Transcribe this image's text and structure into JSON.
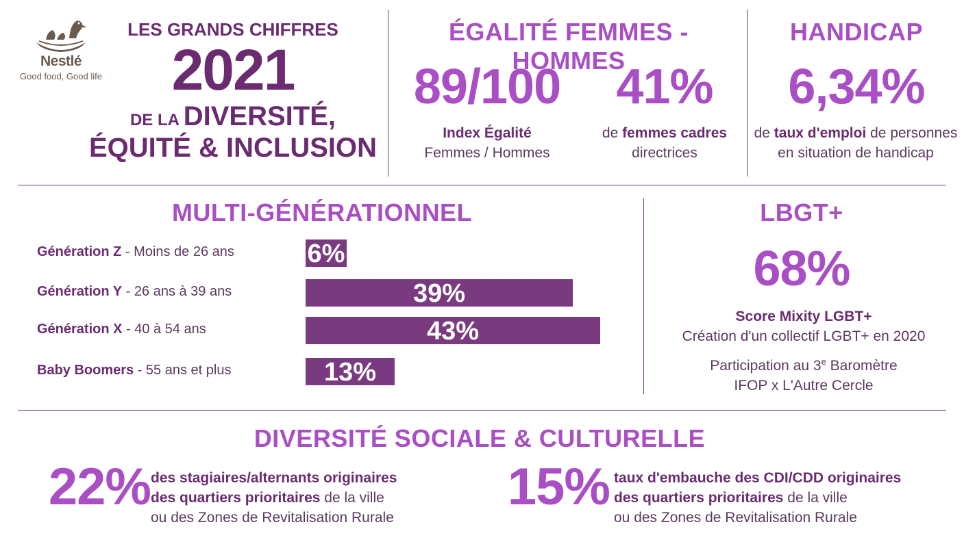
{
  "logo": {
    "brand": "Nestlé",
    "tagline": "Good food, Good life"
  },
  "header": {
    "line1": "LES GRANDS CHIFFRES",
    "year": "2021",
    "line3_small": "DE LA ",
    "line3_big": "DIVERSITÉ,",
    "line4": "ÉQUITÉ & INCLUSION"
  },
  "egalite": {
    "title": "ÉGALITÉ FEMMES - HOMMES",
    "stat1": {
      "value": "89/100",
      "label_bold": "Index Égalité",
      "label_rest": "Femmes / Hommes"
    },
    "stat2": {
      "value": "41%",
      "label_pre": "de ",
      "label_bold": "femmes cadres",
      "label_rest": "directrices"
    }
  },
  "handicap": {
    "title": "HANDICAP",
    "value": "6,34%",
    "label_pre": "de ",
    "label_bold": "taux d'emploi",
    "label_post": " de personnes",
    "label_line2": "en situation de handicap"
  },
  "multigen": {
    "title": "MULTI-GÉNÉRATIONNEL"
  },
  "chart_data": {
    "type": "bar",
    "orientation": "horizontal",
    "title": "MULTI-GÉNÉRATIONNEL",
    "categories": [
      {
        "name": "Génération Z",
        "detail": " - Moins de 26 ans"
      },
      {
        "name": "Génération Y",
        "detail": " - 26 ans à 39 ans"
      },
      {
        "name": "Génération X",
        "detail": " - 40 à 54 ans"
      },
      {
        "name": "Baby Boomers",
        "detail": " - 55 ans et plus"
      }
    ],
    "values": [
      6,
      39,
      43,
      13
    ],
    "value_labels": [
      "6%",
      "39%",
      "43%",
      "13%"
    ],
    "unit": "%",
    "xlim": [
      0,
      43
    ],
    "grid": false,
    "legend": "none",
    "bar_color": "#7a3a80"
  },
  "lgbt": {
    "title": "LBGT+",
    "value": "68%",
    "label_bold": "Score Mixity LGBT+",
    "line2": "Création d'un collectif LGBT+ en 2020",
    "line3_pre": "Participation au 3",
    "line3_sup": "e",
    "line3_post": " Baromètre",
    "line4": "IFOP x L'Autre Cercle"
  },
  "diversite": {
    "title": "DIVERSITÉ SOCIALE & CULTURELLE",
    "stat1": {
      "value": "22%",
      "bold1": "des stagiaires/alternants originaires",
      "bold2": "des quartiers prioritaires",
      "rest2": " de la ville",
      "line3": "ou des Zones de Revitalisation Rurale"
    },
    "stat2": {
      "value": "15%",
      "bold1": "taux d'embauche des CDI/CDD originaires",
      "bold2": "des quartiers prioritaires",
      "rest2": " de la ville",
      "line3": "ou des Zones de Revitalisation Rurale"
    }
  },
  "colors": {
    "accent": "#a94ec4",
    "dark": "#6a2b70",
    "bar": "#7a3a80",
    "text": "#5a3a5e"
  }
}
